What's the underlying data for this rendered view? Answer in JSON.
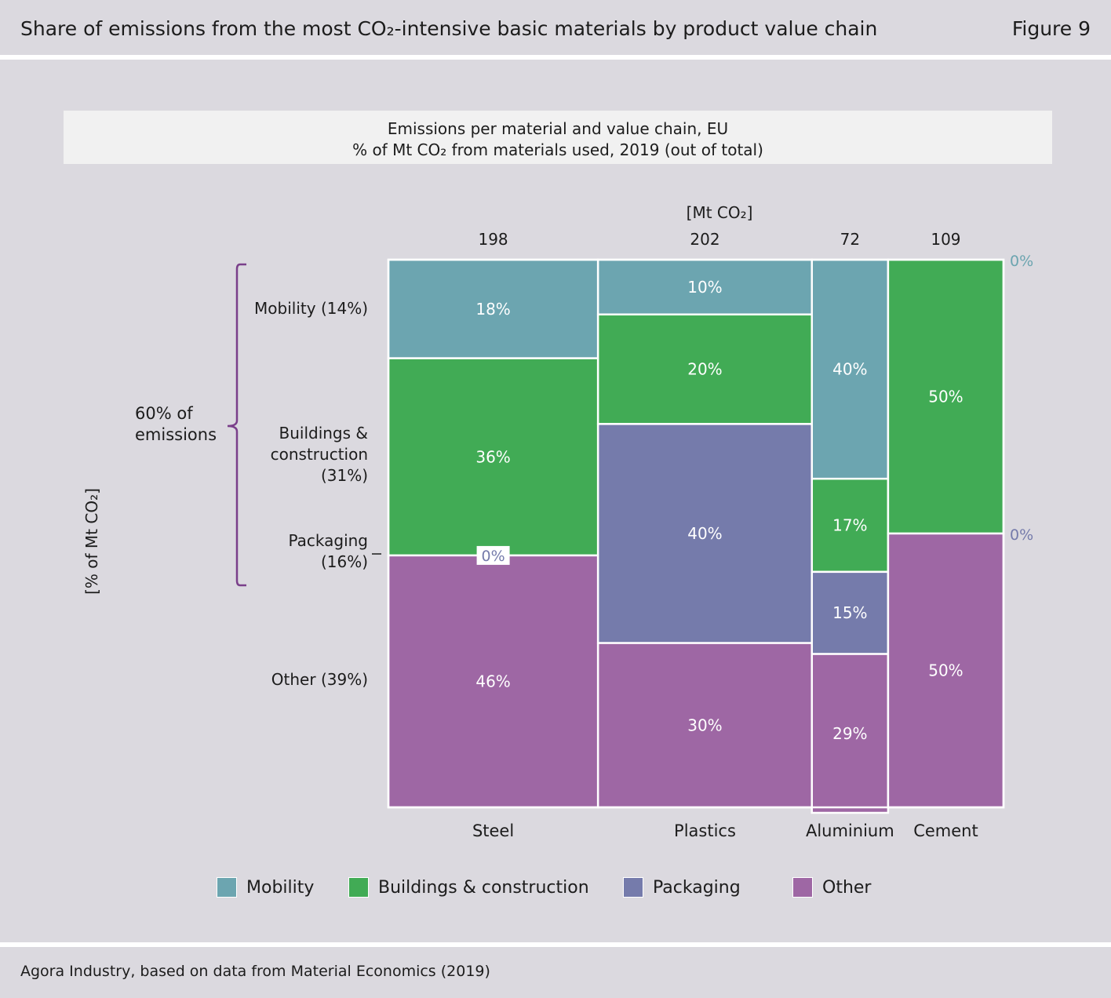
{
  "header": {
    "title": "Share of emissions from the most CO₂-intensive basic materials by product value chain",
    "figure": "Figure 9"
  },
  "subtitle": {
    "line1": "Emissions per material and value chain, EU",
    "line2": "% of Mt CO₂ from materials used, 2019 (out of total)"
  },
  "footer": {
    "source": "Agora Industry, based on data from Material Economics (2019)"
  },
  "colors": {
    "Mobility": "#6ca5b0",
    "Buildings & construction": "#41ab55",
    "Packaging": "#757bab",
    "Other": "#9e67a4",
    "bracket": "#7a3f8a"
  },
  "annotations": {
    "unit_top": "[Mt CO₂]",
    "y_axis_label": "[% of Mt CO₂]",
    "brace_label_line1": "60% of",
    "brace_label_line2": "emissions",
    "row_labels": {
      "mobility": [
        "Mobility (14%)"
      ],
      "buildings": [
        "Buildings &",
        "construction",
        "(31%)"
      ],
      "packaging": [
        "Packaging",
        "(16%)"
      ],
      "other": [
        "Other (39%)"
      ]
    },
    "zero_labels": [
      {
        "text": "0%",
        "after": "Cement",
        "category": "Mobility"
      },
      {
        "text": "0%",
        "after": "Cement",
        "category": "Packaging"
      },
      {
        "text": "0%",
        "in": "Steel",
        "category": "Packaging"
      }
    ]
  },
  "chart_data": {
    "type": "mosaic",
    "categories": [
      "Steel",
      "Plastics",
      "Aluminium",
      "Cement"
    ],
    "totals_mt_co2": [
      198,
      202,
      72,
      109
    ],
    "series": [
      {
        "name": "Mobility",
        "values": [
          18,
          10,
          40,
          0
        ]
      },
      {
        "name": "Buildings & construction",
        "values": [
          36,
          20,
          17,
          50
        ]
      },
      {
        "name": "Packaging",
        "values": [
          0,
          40,
          15,
          0
        ]
      },
      {
        "name": "Other",
        "values": [
          46,
          30,
          29,
          50
        ]
      }
    ],
    "value_unit": "%",
    "legend": [
      "Mobility",
      "Buildings & construction",
      "Packaging",
      "Other"
    ],
    "legend_position": "bottom"
  }
}
